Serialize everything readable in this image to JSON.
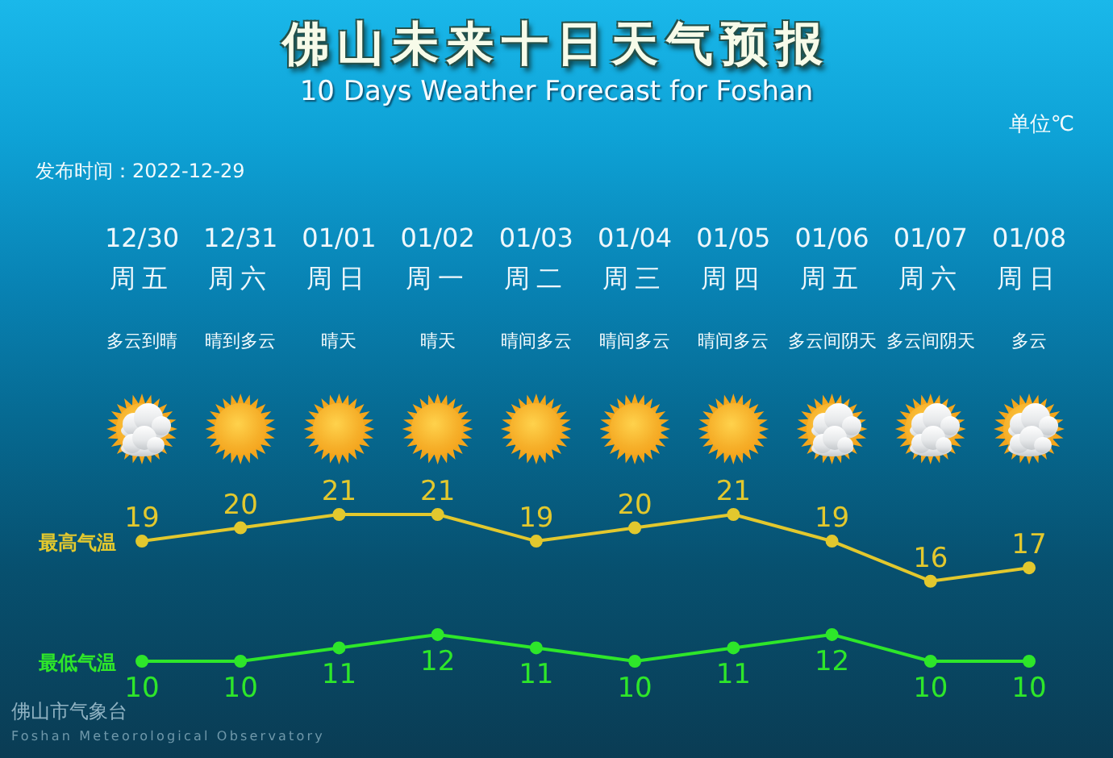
{
  "chart_data": {
    "type": "line",
    "title": "佛山未来十日天气预报",
    "subtitle": "10 Days Weather Forecast for Foshan",
    "categories": [
      "12/30\n周五",
      "12/31\n周六",
      "01/01\n周日",
      "01/02\n周一",
      "01/03\n周二",
      "01/04\n周三",
      "01/05\n周四",
      "01/06\n周五",
      "01/07\n周六",
      "01/08\n周日"
    ],
    "series": [
      {
        "name": "最高气温",
        "color": "#e2c82e",
        "values": [
          19,
          20,
          21,
          21,
          19,
          20,
          21,
          19,
          16,
          17
        ]
      },
      {
        "name": "最低气温",
        "color": "#2ee62a",
        "values": [
          10,
          10,
          11,
          12,
          11,
          10,
          11,
          12,
          10,
          10
        ]
      }
    ],
    "tick_labels": "x",
    "data_labels": true,
    "marker": "circle",
    "annotations": [
      "单位℃",
      "发布时间：2022-12-29",
      "佛山市气象台",
      "Foshan Meteorological Observatory",
      "多云到晴",
      "晴到多云",
      "晴天",
      "晴天",
      "晴间多云",
      "晴间多云",
      "晴间多云",
      "多云间阴天",
      "多云间阴天",
      "多云"
    ]
  }
}
